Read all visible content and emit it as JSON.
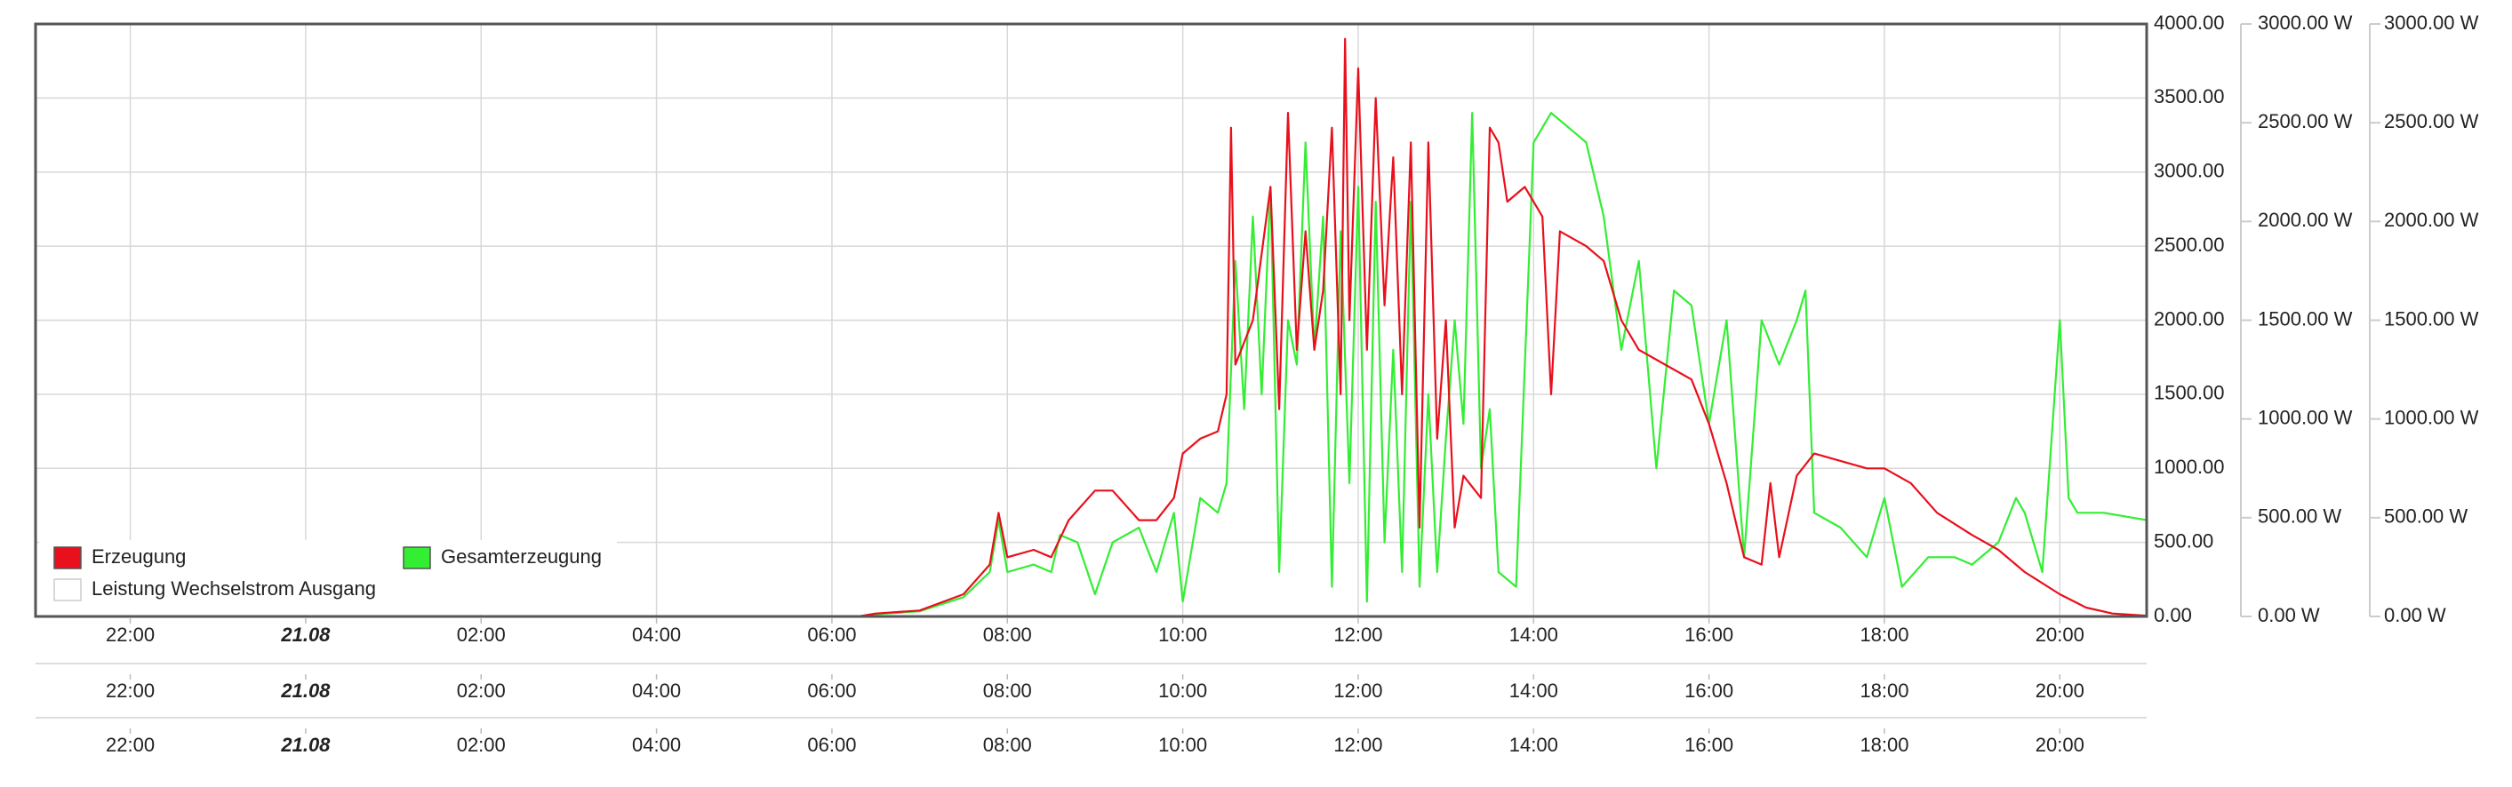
{
  "chart_data": {
    "type": "line",
    "series": [
      {
        "name": "Erzeugung",
        "color": "#e8101c",
        "x": [
          -3.08,
          6.3,
          6.5,
          7.0,
          7.5,
          7.8,
          7.9,
          8.0,
          8.3,
          8.5,
          8.7,
          9.0,
          9.2,
          9.5,
          9.7,
          9.9,
          10.0,
          10.2,
          10.4,
          10.5,
          10.55,
          10.6,
          10.8,
          11.0,
          11.1,
          11.2,
          11.3,
          11.4,
          11.5,
          11.6,
          11.7,
          11.8,
          11.85,
          11.9,
          12.0,
          12.1,
          12.2,
          12.3,
          12.4,
          12.5,
          12.6,
          12.7,
          12.8,
          12.9,
          13.0,
          13.1,
          13.2,
          13.4,
          13.5,
          13.6,
          13.7,
          13.9,
          14.1,
          14.2,
          14.3,
          14.6,
          14.8,
          15.0,
          15.2,
          15.5,
          15.8,
          16.0,
          16.2,
          16.4,
          16.6,
          16.7,
          16.8,
          17.0,
          17.2,
          17.5,
          17.8,
          18.0,
          18.3,
          18.6,
          19.0,
          19.3,
          19.6,
          20.0,
          20.3,
          20.6,
          20.99
        ],
        "values": [
          0,
          0,
          20,
          40,
          150,
          350,
          700,
          400,
          450,
          400,
          650,
          850,
          850,
          650,
          650,
          800,
          1100,
          1200,
          1250,
          1500,
          3300,
          1700,
          2000,
          2900,
          1400,
          3400,
          1800,
          2600,
          1800,
          2200,
          3300,
          1500,
          3900,
          2000,
          3700,
          1800,
          3500,
          2100,
          3100,
          1500,
          3200,
          600,
          3200,
          1200,
          2000,
          600,
          950,
          800,
          3300,
          3200,
          2800,
          2900,
          2700,
          1500,
          2600,
          2500,
          2400,
          2000,
          1800,
          1700,
          1600,
          1300,
          900,
          400,
          350,
          900,
          400,
          950,
          1100,
          1050,
          1000,
          1000,
          900,
          700,
          550,
          450,
          300,
          150,
          60,
          20,
          5
        ]
      },
      {
        "name": "Gesamterzeugung",
        "color": "#33ee33",
        "x": [
          -3.08,
          6.3,
          6.5,
          7.0,
          7.5,
          7.8,
          7.9,
          8.0,
          8.3,
          8.5,
          8.6,
          8.8,
          9.0,
          9.2,
          9.5,
          9.7,
          9.9,
          10.0,
          10.2,
          10.4,
          10.5,
          10.6,
          10.7,
          10.8,
          10.9,
          11.0,
          11.1,
          11.2,
          11.3,
          11.4,
          11.5,
          11.6,
          11.7,
          11.8,
          11.9,
          12.0,
          12.1,
          12.2,
          12.3,
          12.4,
          12.5,
          12.6,
          12.7,
          12.8,
          12.9,
          13.0,
          13.1,
          13.2,
          13.3,
          13.4,
          13.5,
          13.6,
          13.8,
          14.0,
          14.2,
          14.4,
          14.6,
          14.8,
          15.0,
          15.2,
          15.4,
          15.6,
          15.8,
          16.0,
          16.2,
          16.4,
          16.6,
          16.8,
          17.0,
          17.1,
          17.2,
          17.5,
          17.8,
          18.0,
          18.2,
          18.5,
          18.8,
          19.0,
          19.3,
          19.5,
          19.6,
          19.8,
          20.0,
          20.1,
          20.2,
          20.5,
          20.99
        ],
        "values": [
          0,
          0,
          15,
          35,
          130,
          300,
          650,
          300,
          350,
          300,
          550,
          500,
          150,
          500,
          600,
          300,
          700,
          100,
          800,
          700,
          900,
          2400,
          1400,
          2700,
          1500,
          2900,
          300,
          2000,
          1700,
          3200,
          1800,
          2700,
          200,
          2600,
          900,
          2900,
          100,
          2800,
          500,
          1800,
          300,
          2800,
          200,
          1500,
          300,
          1200,
          2000,
          1300,
          3400,
          1000,
          1400,
          300,
          200,
          3200,
          3400,
          3300,
          3200,
          2700,
          1800,
          2400,
          1000,
          2200,
          2100,
          1300,
          2000,
          400,
          2000,
          1700,
          2000,
          2200,
          700,
          600,
          400,
          800,
          200,
          400,
          400,
          350,
          500,
          800,
          700,
          300,
          2000,
          800,
          700,
          700,
          650
        ]
      },
      {
        "name": "Leistung Wechselstrom Ausgang",
        "color": "#ffffff",
        "x": [],
        "values": []
      }
    ],
    "xlim": [
      -3.08,
      20.99
    ],
    "xticks": [
      {
        "value": -2,
        "label": "22:00"
      },
      {
        "value": 0,
        "label": "21.08"
      },
      {
        "value": 2,
        "label": "02:00"
      },
      {
        "value": 4,
        "label": "04:00"
      },
      {
        "value": 6,
        "label": "06:00"
      },
      {
        "value": 8,
        "label": "08:00"
      },
      {
        "value": 10,
        "label": "10:00"
      },
      {
        "value": 12,
        "label": "12:00"
      },
      {
        "value": 14,
        "label": "14:00"
      },
      {
        "value": 16,
        "label": "16:00"
      },
      {
        "value": 18,
        "label": "18:00"
      },
      {
        "value": 20,
        "label": "20:00"
      }
    ],
    "ylim": [
      0,
      4000
    ],
    "yticks": [
      {
        "value": 0,
        "label": "0.00"
      },
      {
        "value": 500,
        "label": "500.00"
      },
      {
        "value": 1000,
        "label": "1000.00"
      },
      {
        "value": 1500,
        "label": "1500.00"
      },
      {
        "value": 2000,
        "label": "2000.00"
      },
      {
        "value": 2500,
        "label": "2500.00"
      },
      {
        "value": 3000,
        "label": "3000.00"
      },
      {
        "value": 3500,
        "label": "3500.00"
      },
      {
        "value": 4000,
        "label": "4000.00"
      }
    ],
    "y2lim": [
      0,
      3000
    ],
    "y2ticks": [
      {
        "value": 0,
        "label": "0.00 W"
      },
      {
        "value": 500,
        "label": "500.00 W"
      },
      {
        "value": 1000,
        "label": "1000.00 W"
      },
      {
        "value": 1500,
        "label": "1500.00 W"
      },
      {
        "value": 2000,
        "label": "2000.00 W"
      },
      {
        "value": 2500,
        "label": "2500.00 W"
      },
      {
        "value": 3000,
        "label": "3000.00 W"
      }
    ],
    "y3lim": [
      0,
      3000
    ],
    "y3ticks": [
      {
        "value": 0,
        "label": "0.00 W"
      },
      {
        "value": 500,
        "label": "500.00 W"
      },
      {
        "value": 1000,
        "label": "1000.00 W"
      },
      {
        "value": 1500,
        "label": "1500.00 W"
      },
      {
        "value": 2000,
        "label": "2000.00 W"
      },
      {
        "value": 2500,
        "label": "2500.00 W"
      },
      {
        "value": 3000,
        "label": "3000.00 W"
      }
    ],
    "grid": true
  }
}
